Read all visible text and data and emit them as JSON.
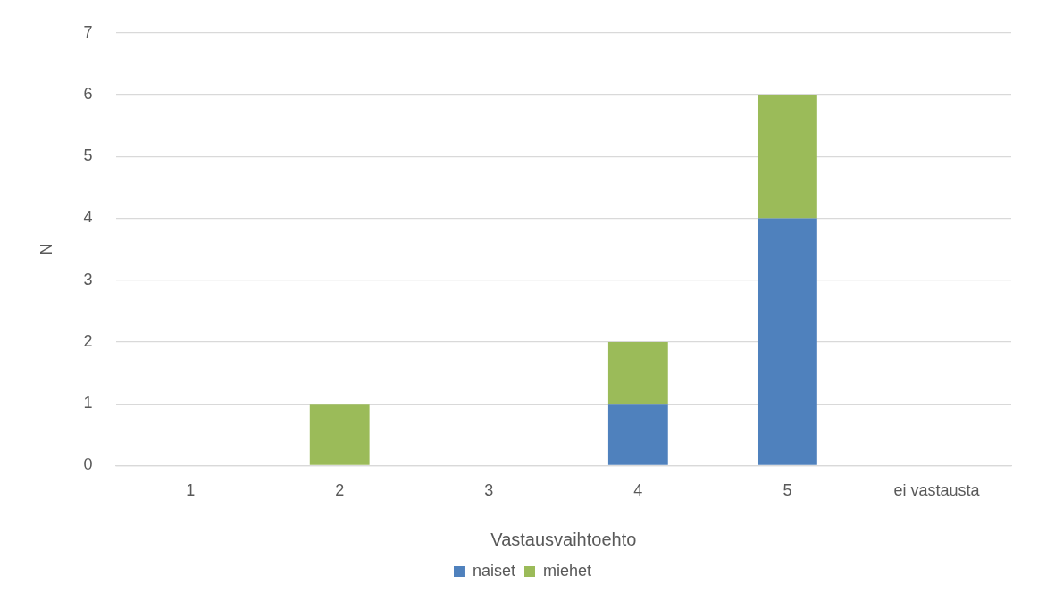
{
  "chart_data": {
    "type": "bar",
    "stacked": true,
    "xlabel": "Vastausvaihtoehto",
    "ylabel": "N",
    "categories": [
      "1",
      "2",
      "3",
      "4",
      "5",
      "ei vastausta"
    ],
    "series": [
      {
        "name": "naiset",
        "color": "#4f81bd",
        "values": [
          0,
          0,
          0,
          1,
          4,
          0
        ]
      },
      {
        "name": "miehet",
        "color": "#9bbb59",
        "values": [
          0,
          1,
          0,
          1,
          2,
          0
        ]
      }
    ],
    "ylim": [
      0,
      7
    ],
    "yticks": [
      0,
      1,
      2,
      3,
      4,
      5,
      6,
      7
    ],
    "grid": "y",
    "legend": "bottom"
  }
}
